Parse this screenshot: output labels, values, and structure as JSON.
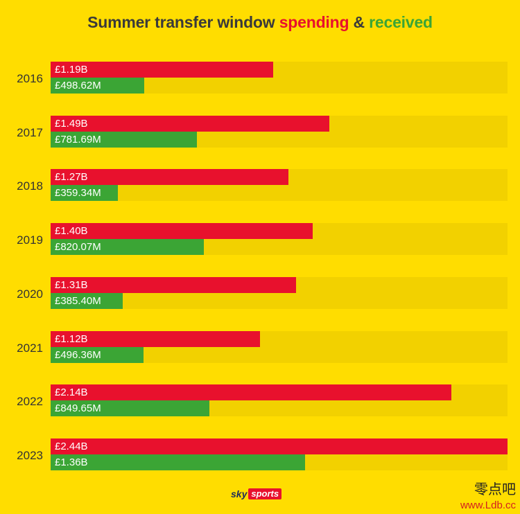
{
  "title": {
    "prefix": "Summer transfer window",
    "spending": "spending",
    "amp": "&",
    "received": "received"
  },
  "colors": {
    "background": "#FFDD00",
    "spending": "#E8112D",
    "received": "#3BA535",
    "track": "#F2D100"
  },
  "logo": {
    "sky": "sky",
    "sports": "sports"
  },
  "watermark": {
    "chinese": "零点吧",
    "url": "www.Ldb.cc"
  },
  "chart_data": {
    "type": "bar",
    "orientation": "horizontal",
    "title": "Summer transfer window spending & received",
    "categories": [
      "2016",
      "2017",
      "2018",
      "2019",
      "2020",
      "2021",
      "2022",
      "2023"
    ],
    "unit": "£ millions",
    "series": [
      {
        "name": "spending",
        "values": [
          1190,
          1490,
          1270,
          1400,
          1310,
          1120,
          2140,
          2440
        ],
        "labels": [
          "£1.19B",
          "£1.49B",
          "£1.27B",
          "£1.40B",
          "£1.31B",
          "£1.12B",
          "£2.14B",
          "£2.44B"
        ]
      },
      {
        "name": "received",
        "values": [
          498.62,
          781.69,
          359.34,
          820.07,
          385.4,
          496.36,
          849.65,
          1360
        ],
        "labels": [
          "£498.62M",
          "£781.69M",
          "£359.34M",
          "£820.07M",
          "£385.40M",
          "£496.36M",
          "£849.65M",
          "£1.36B"
        ]
      }
    ],
    "xlim": [
      0,
      2440
    ],
    "grid": false,
    "legend": "none"
  }
}
